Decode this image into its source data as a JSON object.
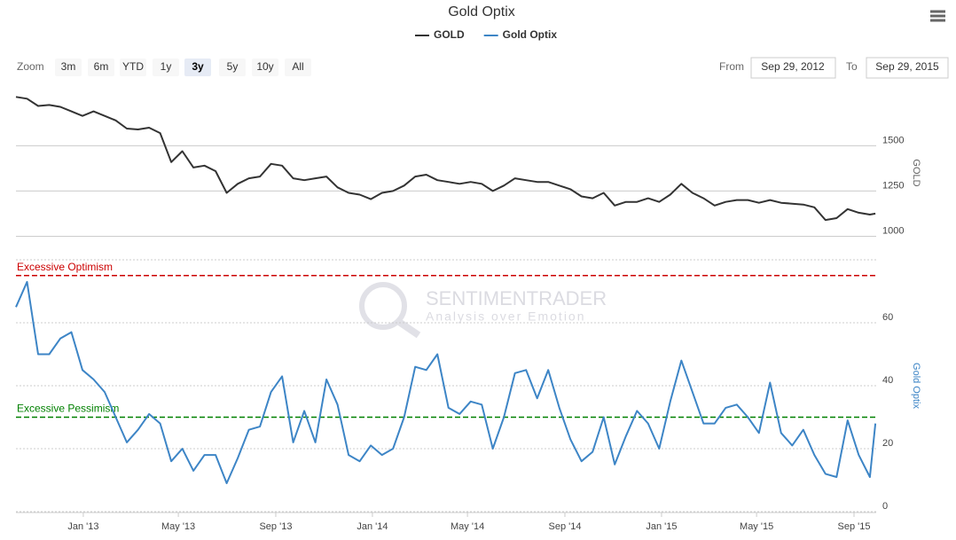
{
  "chart_data": {
    "type": "line",
    "title": "Gold Optix",
    "x": [
      "2012-10-08",
      "2012-10-22",
      "2012-11-05",
      "2012-11-19",
      "2012-12-03",
      "2012-12-17",
      "2012-12-31",
      "2013-01-14",
      "2013-01-28",
      "2013-02-11",
      "2013-02-25",
      "2013-03-11",
      "2013-03-25",
      "2013-04-08",
      "2013-04-22",
      "2013-05-06",
      "2013-05-20",
      "2013-06-03",
      "2013-06-17",
      "2013-07-01",
      "2013-07-15",
      "2013-07-29",
      "2013-08-12",
      "2013-08-26",
      "2013-09-09",
      "2013-09-23",
      "2013-10-07",
      "2013-10-21",
      "2013-11-04",
      "2013-11-18",
      "2013-12-02",
      "2013-12-16",
      "2013-12-30",
      "2014-01-13",
      "2014-01-27",
      "2014-02-10",
      "2014-02-24",
      "2014-03-10",
      "2014-03-24",
      "2014-04-07",
      "2014-04-21",
      "2014-05-05",
      "2014-05-19",
      "2014-06-02",
      "2014-06-16",
      "2014-06-30",
      "2014-07-14",
      "2014-07-28",
      "2014-08-11",
      "2014-08-25",
      "2014-09-08",
      "2014-09-22",
      "2014-10-06",
      "2014-10-20",
      "2014-11-03",
      "2014-11-17",
      "2014-12-01",
      "2014-12-15",
      "2014-12-29",
      "2015-01-12",
      "2015-01-26",
      "2015-02-09",
      "2015-02-23",
      "2015-03-09",
      "2015-03-23",
      "2015-04-06",
      "2015-04-20",
      "2015-05-04",
      "2015-05-18",
      "2015-06-01",
      "2015-06-15",
      "2015-06-29",
      "2015-07-13",
      "2015-07-27",
      "2015-08-10",
      "2015-08-24",
      "2015-09-07",
      "2015-09-21",
      "2015-09-28"
    ],
    "series": [
      {
        "name": "GOLD",
        "color": "#333333",
        "axis": "y",
        "values": [
          1770,
          1760,
          1720,
          1725,
          1715,
          1690,
          1665,
          1690,
          1665,
          1640,
          1595,
          1590,
          1600,
          1570,
          1410,
          1470,
          1380,
          1390,
          1360,
          1240,
          1290,
          1320,
          1330,
          1400,
          1390,
          1320,
          1310,
          1320,
          1330,
          1270,
          1240,
          1230,
          1205,
          1240,
          1250,
          1280,
          1330,
          1340,
          1310,
          1300,
          1290,
          1300,
          1290,
          1250,
          1280,
          1320,
          1310,
          1300,
          1300,
          1280,
          1260,
          1220,
          1210,
          1240,
          1170,
          1190,
          1190,
          1210,
          1190,
          1230,
          1290,
          1240,
          1210,
          1170,
          1190,
          1200,
          1200,
          1185,
          1200,
          1185,
          1180,
          1175,
          1160,
          1090,
          1100,
          1150,
          1130,
          1120,
          1125
        ]
      },
      {
        "name": "Gold Optix",
        "color": "#3d85c6",
        "axis": "y2",
        "values": [
          65,
          73,
          50,
          50,
          55,
          57,
          45,
          42,
          38,
          30,
          22,
          26,
          31,
          28,
          16,
          20,
          13,
          18,
          18,
          9,
          17,
          26,
          27,
          38,
          43,
          22,
          32,
          22,
          42,
          34,
          18,
          16,
          21,
          18,
          20,
          30,
          46,
          45,
          50,
          33,
          31,
          35,
          34,
          20,
          30,
          44,
          45,
          36,
          45,
          33,
          23,
          16,
          19,
          30,
          15,
          24,
          32,
          28,
          20,
          35,
          48,
          38,
          28,
          28,
          33,
          34,
          30,
          25,
          41,
          25,
          21,
          26,
          18,
          12,
          11,
          29,
          18,
          11,
          28
        ]
      }
    ],
    "xlim": [
      "2012-10-08",
      "2015-09-29"
    ],
    "xticks": [
      {
        "value": "2013-01-01",
        "label": "Jan '13"
      },
      {
        "value": "2013-05-01",
        "label": "May '13"
      },
      {
        "value": "2013-09-01",
        "label": "Sep '13"
      },
      {
        "value": "2014-01-01",
        "label": "Jan '14"
      },
      {
        "value": "2014-05-01",
        "label": "May '14"
      },
      {
        "value": "2014-09-01",
        "label": "Sep '14"
      },
      {
        "value": "2015-01-01",
        "label": "Jan '15"
      },
      {
        "value": "2015-05-01",
        "label": "May '15"
      },
      {
        "value": "2015-09-01",
        "label": "Sep '15"
      }
    ],
    "ylim": [
      870,
      1830
    ],
    "yticks": [
      1000,
      1250,
      1500
    ],
    "y_label": "GOLD",
    "y2lim": [
      0,
      80
    ],
    "y2ticks": [
      0,
      20,
      40,
      60
    ],
    "y2_label": "Gold Optix",
    "plot_lines": [
      {
        "value": 75,
        "label": "Excessive Optimism",
        "color": "#cc0000"
      },
      {
        "value": 30,
        "label": "Excessive Pessimism",
        "color": "#008000"
      }
    ],
    "grid": true,
    "watermark": {
      "title": "SENTIMENTRADER",
      "subtitle": "Analysis over Emotion"
    }
  },
  "range_selector": {
    "zoom_label": "Zoom",
    "buttons": [
      "3m",
      "6m",
      "YTD",
      "1y",
      "3y",
      "5y",
      "10y",
      "All"
    ],
    "selected": 4,
    "from_label": "From",
    "from": "Sep 29, 2012",
    "to_label": "To",
    "to": "Sep 29, 2015"
  }
}
